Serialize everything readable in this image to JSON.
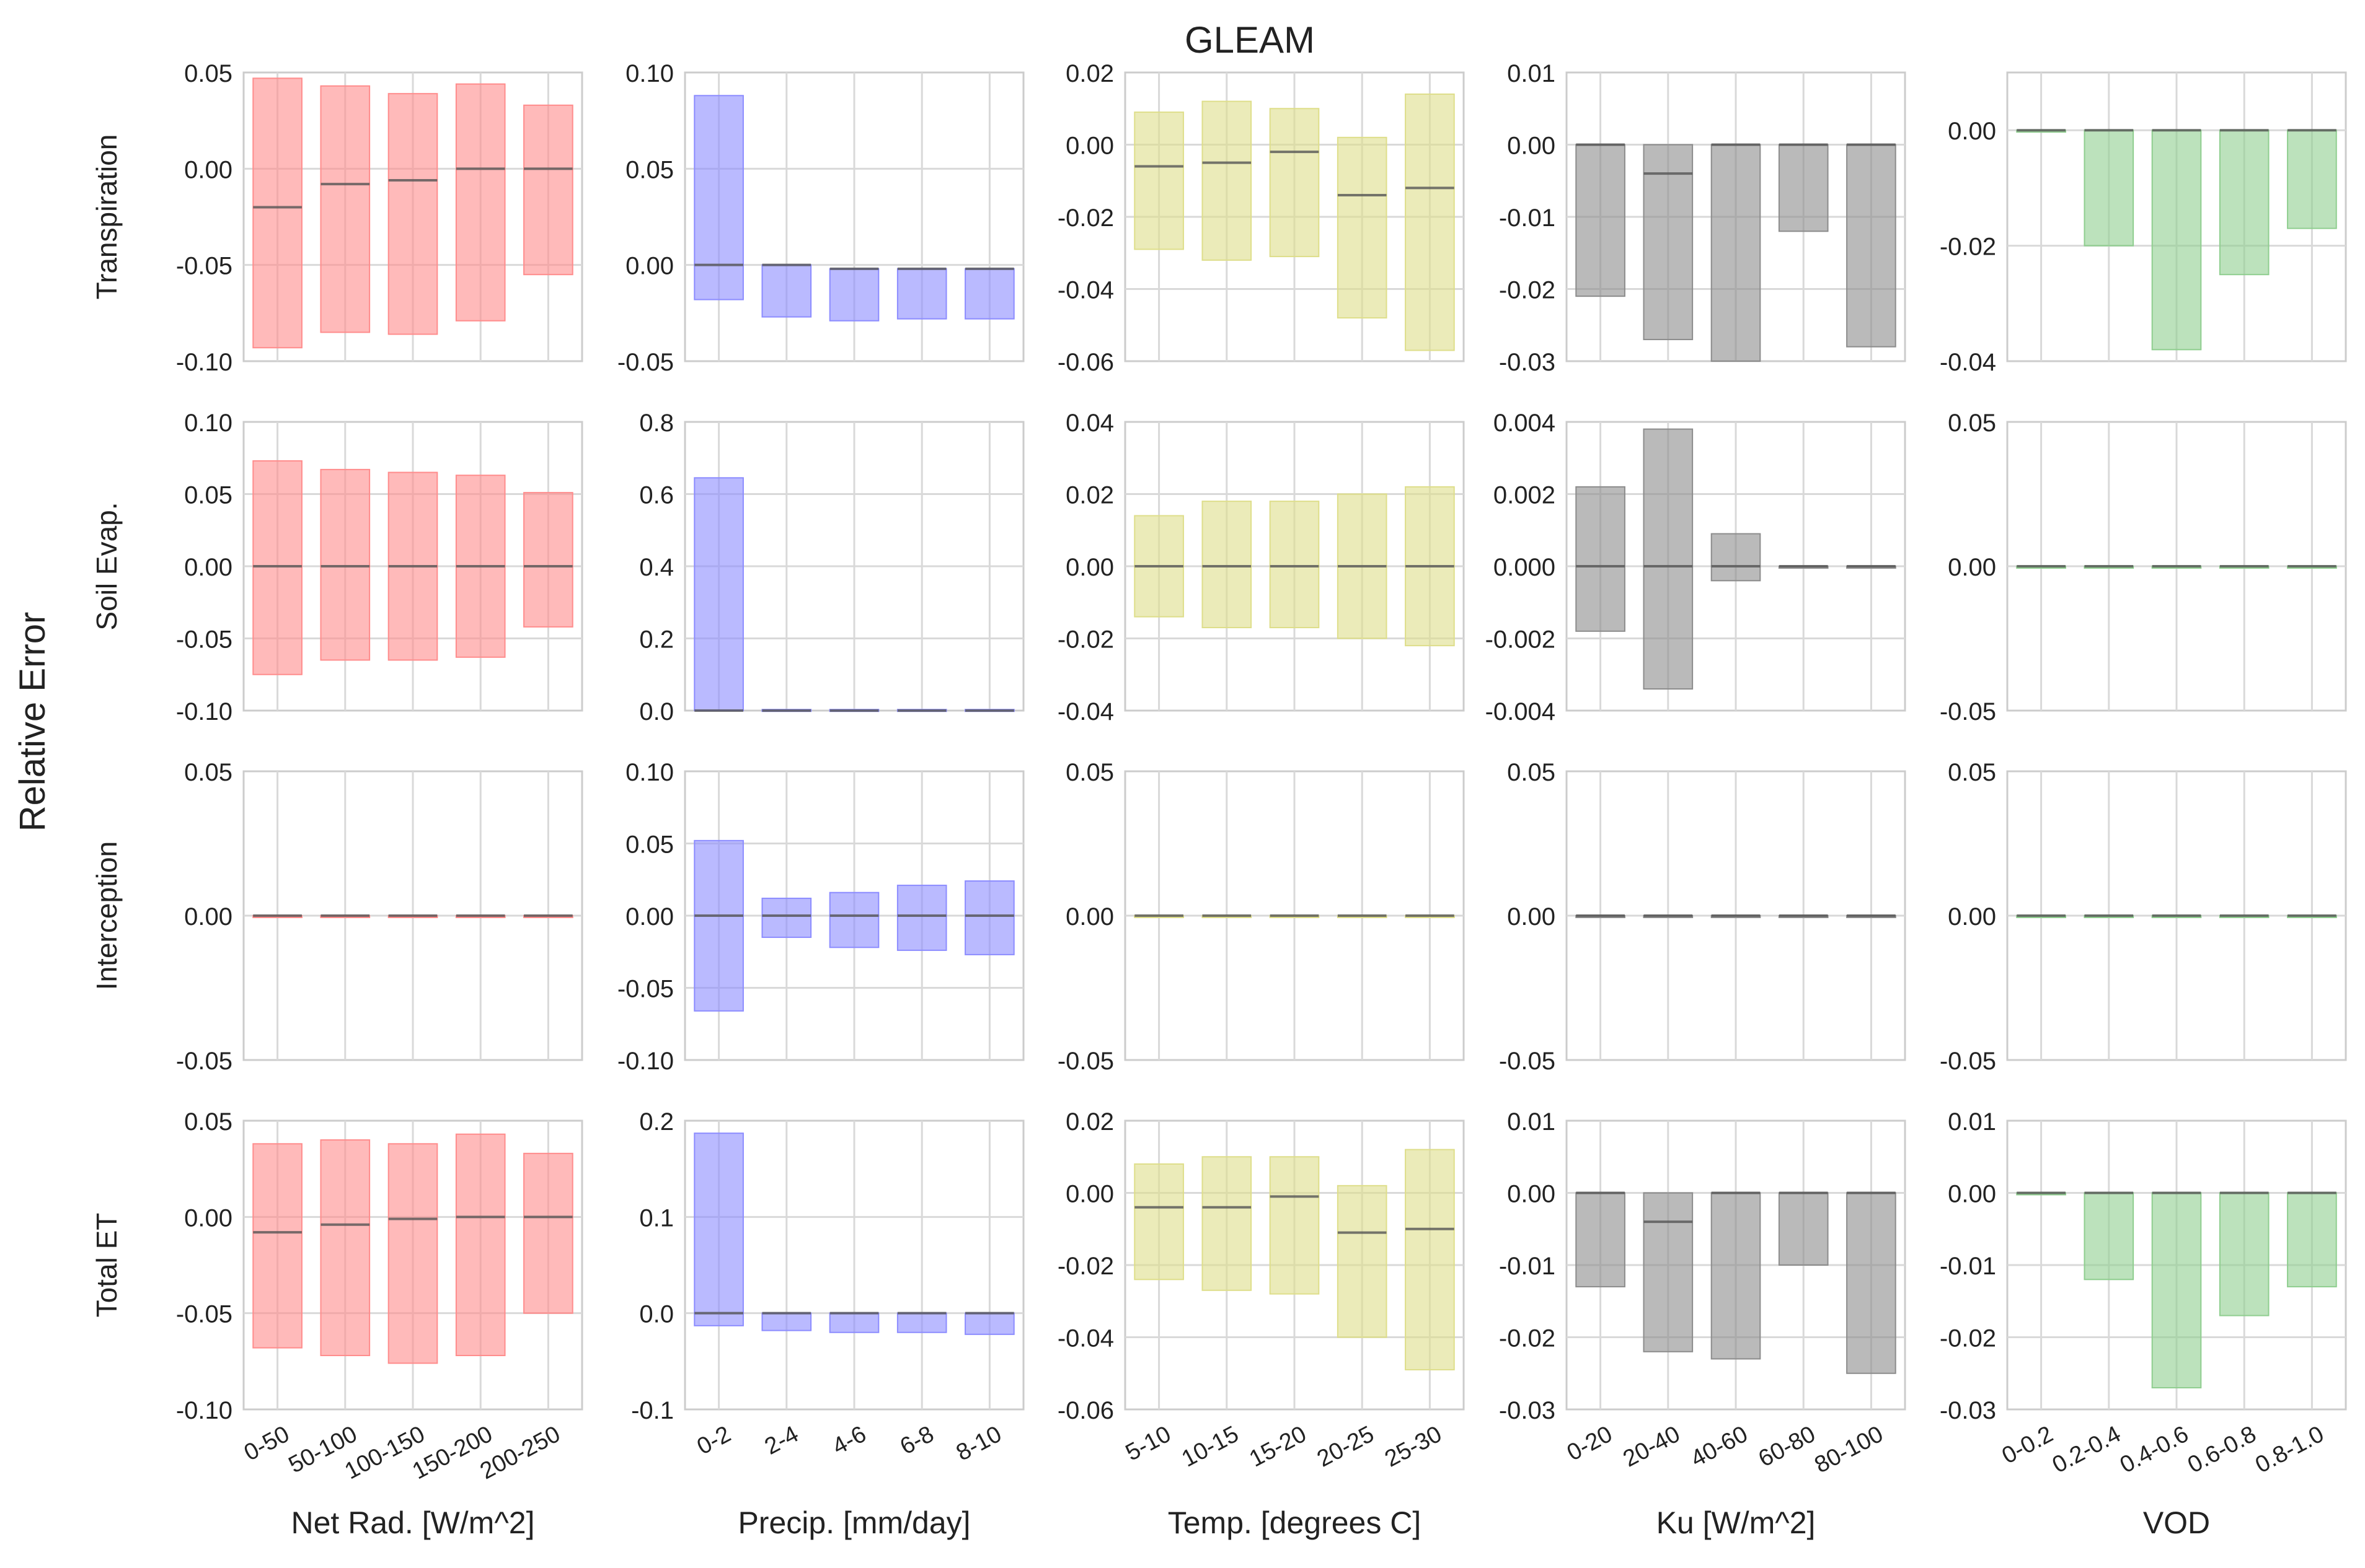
{
  "figure": {
    "title": "GLEAM",
    "ylabel": "Relative Error"
  },
  "rows": [
    "Transpiration",
    "Soil Evap.",
    "Interception",
    "Total ET"
  ],
  "columns": [
    {
      "xlabel": "Net Rad. [W/m^2]",
      "color": "#ff8c8c",
      "categories": [
        "0-50",
        "50-100",
        "100-150",
        "150-200",
        "200-250"
      ]
    },
    {
      "xlabel": "Precip. [mm/day]",
      "color": "#8c8cff",
      "categories": [
        "0-2",
        "2-4",
        "4-6",
        "6-8",
        "8-10"
      ]
    },
    {
      "xlabel": "Temp. [degrees C]",
      "color": "#dede8a",
      "categories": [
        "5-10",
        "10-15",
        "15-20",
        "20-25",
        "25-30"
      ]
    },
    {
      "xlabel": "Ku [W/m^2]",
      "color": "#8c8c8c",
      "categories": [
        "0-20",
        "20-40",
        "40-60",
        "60-80",
        "80-100"
      ]
    },
    {
      "xlabel": "VOD",
      "color": "#8fce8f",
      "categories": [
        "0-0.2",
        "0.2-0.4",
        "0.4-0.6",
        "0.6-0.8",
        "0.8-1.0"
      ]
    }
  ],
  "chart_data": [
    {
      "type": "bar",
      "row": "Transpiration",
      "column": "Net Rad. [W/m^2]",
      "ylim": [
        -0.1,
        0.05
      ],
      "yticks": [
        "0.05",
        "0.00",
        "-0.05",
        "-0.10"
      ],
      "categories": [
        "0-50",
        "50-100",
        "100-150",
        "150-200",
        "200-250"
      ],
      "low": [
        -0.093,
        -0.085,
        -0.086,
        -0.079,
        -0.055
      ],
      "high": [
        0.047,
        0.043,
        0.039,
        0.044,
        0.033
      ],
      "mid": [
        -0.02,
        -0.008,
        -0.006,
        0.0,
        0.0
      ]
    },
    {
      "type": "bar",
      "row": "Transpiration",
      "column": "Precip. [mm/day]",
      "ylim": [
        -0.05,
        0.1
      ],
      "yticks": [
        "0.10",
        "0.05",
        "0.00",
        "-0.05"
      ],
      "categories": [
        "0-2",
        "2-4",
        "4-6",
        "6-8",
        "8-10"
      ],
      "low": [
        -0.018,
        -0.027,
        -0.029,
        -0.028,
        -0.028
      ],
      "high": [
        0.088,
        0.0,
        -0.002,
        -0.002,
        -0.002
      ],
      "mid": [
        0.0,
        0.0,
        -0.002,
        -0.002,
        -0.002
      ]
    },
    {
      "type": "bar",
      "row": "Transpiration",
      "column": "Temp. [degrees C]",
      "ylim": [
        -0.06,
        0.02
      ],
      "yticks": [
        "0.02",
        "0.00",
        "-0.02",
        "-0.04",
        "-0.06"
      ],
      "categories": [
        "5-10",
        "10-15",
        "15-20",
        "20-25",
        "25-30"
      ],
      "low": [
        -0.029,
        -0.032,
        -0.031,
        -0.048,
        -0.057
      ],
      "high": [
        0.009,
        0.012,
        0.01,
        0.002,
        0.014
      ],
      "mid": [
        -0.006,
        -0.005,
        -0.002,
        -0.014,
        -0.012
      ]
    },
    {
      "type": "bar",
      "row": "Transpiration",
      "column": "Ku [W/m^2]",
      "ylim": [
        -0.03,
        0.01
      ],
      "yticks": [
        "0.01",
        "0.00",
        "-0.01",
        "-0.02",
        "-0.03"
      ],
      "categories": [
        "0-20",
        "20-40",
        "40-60",
        "60-80",
        "80-100"
      ],
      "low": [
        -0.021,
        -0.027,
        -0.03,
        -0.012,
        -0.028
      ],
      "high": [
        0.0,
        0.0,
        0.0,
        0.0,
        0.0
      ],
      "mid": [
        0.0,
        -0.004,
        0.0,
        0.0,
        0.0
      ]
    },
    {
      "type": "bar",
      "row": "Transpiration",
      "column": "VOD",
      "ylim": [
        -0.04,
        0.01
      ],
      "yticks": [
        "0.00",
        "-0.02",
        "-0.04"
      ],
      "categories": [
        "0-0.2",
        "0.2-0.4",
        "0.4-0.6",
        "0.6-0.8",
        "0.8-1.0"
      ],
      "low": [
        0.0,
        -0.02,
        -0.038,
        -0.025,
        -0.017
      ],
      "high": [
        0.0,
        0.0,
        0.0,
        0.0,
        0.0
      ],
      "mid": [
        0.0,
        0.0,
        0.0,
        0.0,
        0.0
      ]
    },
    {
      "type": "bar",
      "row": "Soil Evap.",
      "column": "Net Rad. [W/m^2]",
      "ylim": [
        -0.1,
        0.1
      ],
      "yticks": [
        "0.10",
        "0.05",
        "0.00",
        "-0.05",
        "-0.10"
      ],
      "categories": [
        "0-50",
        "50-100",
        "100-150",
        "150-200",
        "200-250"
      ],
      "low": [
        -0.075,
        -0.065,
        -0.065,
        -0.063,
        -0.042
      ],
      "high": [
        0.073,
        0.067,
        0.065,
        0.063,
        0.051
      ],
      "mid": [
        0.0,
        0.0,
        0.0,
        0.0,
        0.0
      ]
    },
    {
      "type": "bar",
      "row": "Soil Evap.",
      "column": "Precip. [mm/day]",
      "ylim": [
        0.0,
        0.8
      ],
      "yticks": [
        "0.8",
        "0.6",
        "0.4",
        "0.2",
        "0.0"
      ],
      "categories": [
        "0-2",
        "2-4",
        "4-6",
        "6-8",
        "8-10"
      ],
      "low": [
        0.0,
        0.0,
        0.0,
        0.0,
        0.0
      ],
      "high": [
        0.645,
        0.003,
        0.003,
        0.003,
        0.003
      ],
      "mid": [
        0.0,
        0.0,
        0.0,
        0.0,
        0.0
      ]
    },
    {
      "type": "bar",
      "row": "Soil Evap.",
      "column": "Temp. [degrees C]",
      "ylim": [
        -0.04,
        0.04
      ],
      "yticks": [
        "0.04",
        "0.02",
        "0.00",
        "-0.02",
        "-0.04"
      ],
      "categories": [
        "5-10",
        "10-15",
        "15-20",
        "20-25",
        "25-30"
      ],
      "low": [
        -0.014,
        -0.017,
        -0.017,
        -0.02,
        -0.022
      ],
      "high": [
        0.014,
        0.018,
        0.018,
        0.02,
        0.022
      ],
      "mid": [
        0.0,
        0.0,
        0.0,
        0.0,
        0.0
      ]
    },
    {
      "type": "bar",
      "row": "Soil Evap.",
      "column": "Ku [W/m^2]",
      "ylim": [
        -0.004,
        0.004
      ],
      "yticks": [
        "0.004",
        "0.002",
        "0.000",
        "-0.002",
        "-0.004"
      ],
      "categories": [
        "0-20",
        "20-40",
        "40-60",
        "60-80",
        "80-100"
      ],
      "low": [
        -0.0018,
        -0.0034,
        -0.0004,
        0.0,
        0.0
      ],
      "high": [
        0.0022,
        0.0038,
        0.0009,
        0.0,
        0.0
      ],
      "mid": [
        0.0,
        0.0,
        0.0,
        0.0,
        0.0
      ]
    },
    {
      "type": "bar",
      "row": "Soil Evap.",
      "column": "VOD",
      "ylim": [
        -0.05,
        0.05
      ],
      "yticks": [
        "0.05",
        "0.00",
        "-0.05"
      ],
      "categories": [
        "0-0.2",
        "0.2-0.4",
        "0.4-0.6",
        "0.6-0.8",
        "0.8-1.0"
      ],
      "low": [
        0.0,
        0.0,
        0.0,
        0.0,
        0.0
      ],
      "high": [
        0.0,
        0.0,
        0.0,
        0.0,
        0.0
      ],
      "mid": [
        0.0,
        0.0,
        0.0,
        0.0,
        0.0
      ]
    },
    {
      "type": "bar",
      "row": "Interception",
      "column": "Net Rad. [W/m^2]",
      "ylim": [
        -0.05,
        0.05
      ],
      "yticks": [
        "0.05",
        "0.00",
        "-0.05"
      ],
      "categories": [
        "0-50",
        "50-100",
        "100-150",
        "150-200",
        "200-250"
      ],
      "low": [
        0.0,
        0.0,
        0.0,
        0.0,
        0.0
      ],
      "high": [
        0.0,
        0.0,
        0.0,
        0.0,
        0.0
      ],
      "mid": [
        0.0,
        0.0,
        0.0,
        0.0,
        0.0
      ]
    },
    {
      "type": "bar",
      "row": "Interception",
      "column": "Precip. [mm/day]",
      "ylim": [
        -0.1,
        0.1
      ],
      "yticks": [
        "0.10",
        "0.05",
        "0.00",
        "-0.05",
        "-0.10"
      ],
      "categories": [
        "0-2",
        "2-4",
        "4-6",
        "6-8",
        "8-10"
      ],
      "low": [
        -0.066,
        -0.015,
        -0.022,
        -0.024,
        -0.027
      ],
      "high": [
        0.052,
        0.012,
        0.016,
        0.021,
        0.024
      ],
      "mid": [
        0.0,
        0.0,
        0.0,
        0.0,
        0.0
      ]
    },
    {
      "type": "bar",
      "row": "Interception",
      "column": "Temp. [degrees C]",
      "ylim": [
        -0.05,
        0.05
      ],
      "yticks": [
        "0.05",
        "0.00",
        "-0.05"
      ],
      "categories": [
        "5-10",
        "10-15",
        "15-20",
        "20-25",
        "25-30"
      ],
      "low": [
        0.0,
        0.0,
        0.0,
        0.0,
        0.0
      ],
      "high": [
        0.0,
        0.0,
        0.0,
        0.0,
        0.0
      ],
      "mid": [
        0.0,
        0.0,
        0.0,
        0.0,
        0.0
      ]
    },
    {
      "type": "bar",
      "row": "Interception",
      "column": "Ku [W/m^2]",
      "ylim": [
        -0.05,
        0.05
      ],
      "yticks": [
        "0.05",
        "0.00",
        "-0.05"
      ],
      "categories": [
        "0-20",
        "20-40",
        "40-60",
        "60-80",
        "80-100"
      ],
      "low": [
        0.0,
        0.0,
        0.0,
        0.0,
        0.0
      ],
      "high": [
        0.0,
        0.0,
        0.0,
        0.0,
        0.0
      ],
      "mid": [
        0.0,
        0.0,
        0.0,
        0.0,
        0.0
      ]
    },
    {
      "type": "bar",
      "row": "Interception",
      "column": "VOD",
      "ylim": [
        -0.05,
        0.05
      ],
      "yticks": [
        "0.05",
        "0.00",
        "-0.05"
      ],
      "categories": [
        "0-0.2",
        "0.2-0.4",
        "0.4-0.6",
        "0.6-0.8",
        "0.8-1.0"
      ],
      "low": [
        0.0,
        0.0,
        0.0,
        0.0,
        0.0
      ],
      "high": [
        0.0,
        0.0,
        0.0,
        0.0,
        0.0
      ],
      "mid": [
        0.0,
        0.0,
        0.0,
        0.0,
        0.0
      ]
    },
    {
      "type": "bar",
      "row": "Total ET",
      "column": "Net Rad. [W/m^2]",
      "ylim": [
        -0.1,
        0.05
      ],
      "yticks": [
        "0.05",
        "0.00",
        "-0.05",
        "-0.10"
      ],
      "categories": [
        "0-50",
        "50-100",
        "100-150",
        "150-200",
        "200-250"
      ],
      "low": [
        -0.068,
        -0.072,
        -0.076,
        -0.072,
        -0.05
      ],
      "high": [
        0.038,
        0.04,
        0.038,
        0.043,
        0.033
      ],
      "mid": [
        -0.008,
        -0.004,
        -0.001,
        0.0,
        0.0
      ]
    },
    {
      "type": "bar",
      "row": "Total ET",
      "column": "Precip. [mm/day]",
      "ylim": [
        -0.1,
        0.2
      ],
      "yticks": [
        "0.2",
        "0.1",
        "0.0",
        "-0.1"
      ],
      "categories": [
        "0-2",
        "2-4",
        "4-6",
        "6-8",
        "8-10"
      ],
      "low": [
        -0.013,
        -0.018,
        -0.02,
        -0.02,
        -0.022
      ],
      "high": [
        0.187,
        0.0,
        0.0,
        0.0,
        0.0
      ],
      "mid": [
        0.0,
        0.0,
        0.0,
        0.0,
        0.0
      ]
    },
    {
      "type": "bar",
      "row": "Total ET",
      "column": "Temp. [degrees C]",
      "ylim": [
        -0.06,
        0.02
      ],
      "yticks": [
        "0.02",
        "0.00",
        "-0.02",
        "-0.04",
        "-0.06"
      ],
      "categories": [
        "5-10",
        "10-15",
        "15-20",
        "20-25",
        "25-30"
      ],
      "low": [
        -0.024,
        -0.027,
        -0.028,
        -0.04,
        -0.049
      ],
      "high": [
        0.008,
        0.01,
        0.01,
        0.002,
        0.012
      ],
      "mid": [
        -0.004,
        -0.004,
        -0.001,
        -0.011,
        -0.01
      ]
    },
    {
      "type": "bar",
      "row": "Total ET",
      "column": "Ku [W/m^2]",
      "ylim": [
        -0.03,
        0.01
      ],
      "yticks": [
        "0.01",
        "0.00",
        "-0.01",
        "-0.02",
        "-0.03"
      ],
      "categories": [
        "0-20",
        "20-40",
        "40-60",
        "60-80",
        "80-100"
      ],
      "low": [
        -0.013,
        -0.022,
        -0.023,
        -0.01,
        -0.025
      ],
      "high": [
        0.0,
        0.0,
        0.0,
        0.0,
        0.0
      ],
      "mid": [
        0.0,
        -0.004,
        0.0,
        0.0,
        0.0
      ]
    },
    {
      "type": "bar",
      "row": "Total ET",
      "column": "VOD",
      "ylim": [
        -0.03,
        0.01
      ],
      "yticks": [
        "0.01",
        "0.00",
        "-0.01",
        "-0.02",
        "-0.03"
      ],
      "categories": [
        "0-0.2",
        "0.2-0.4",
        "0.4-0.6",
        "0.6-0.8",
        "0.8-1.0"
      ],
      "low": [
        0.0,
        -0.012,
        -0.027,
        -0.017,
        -0.013
      ],
      "high": [
        0.0,
        0.0,
        0.0,
        0.0,
        0.0
      ],
      "mid": [
        0.0,
        0.0,
        0.0,
        0.0,
        0.0
      ]
    }
  ]
}
